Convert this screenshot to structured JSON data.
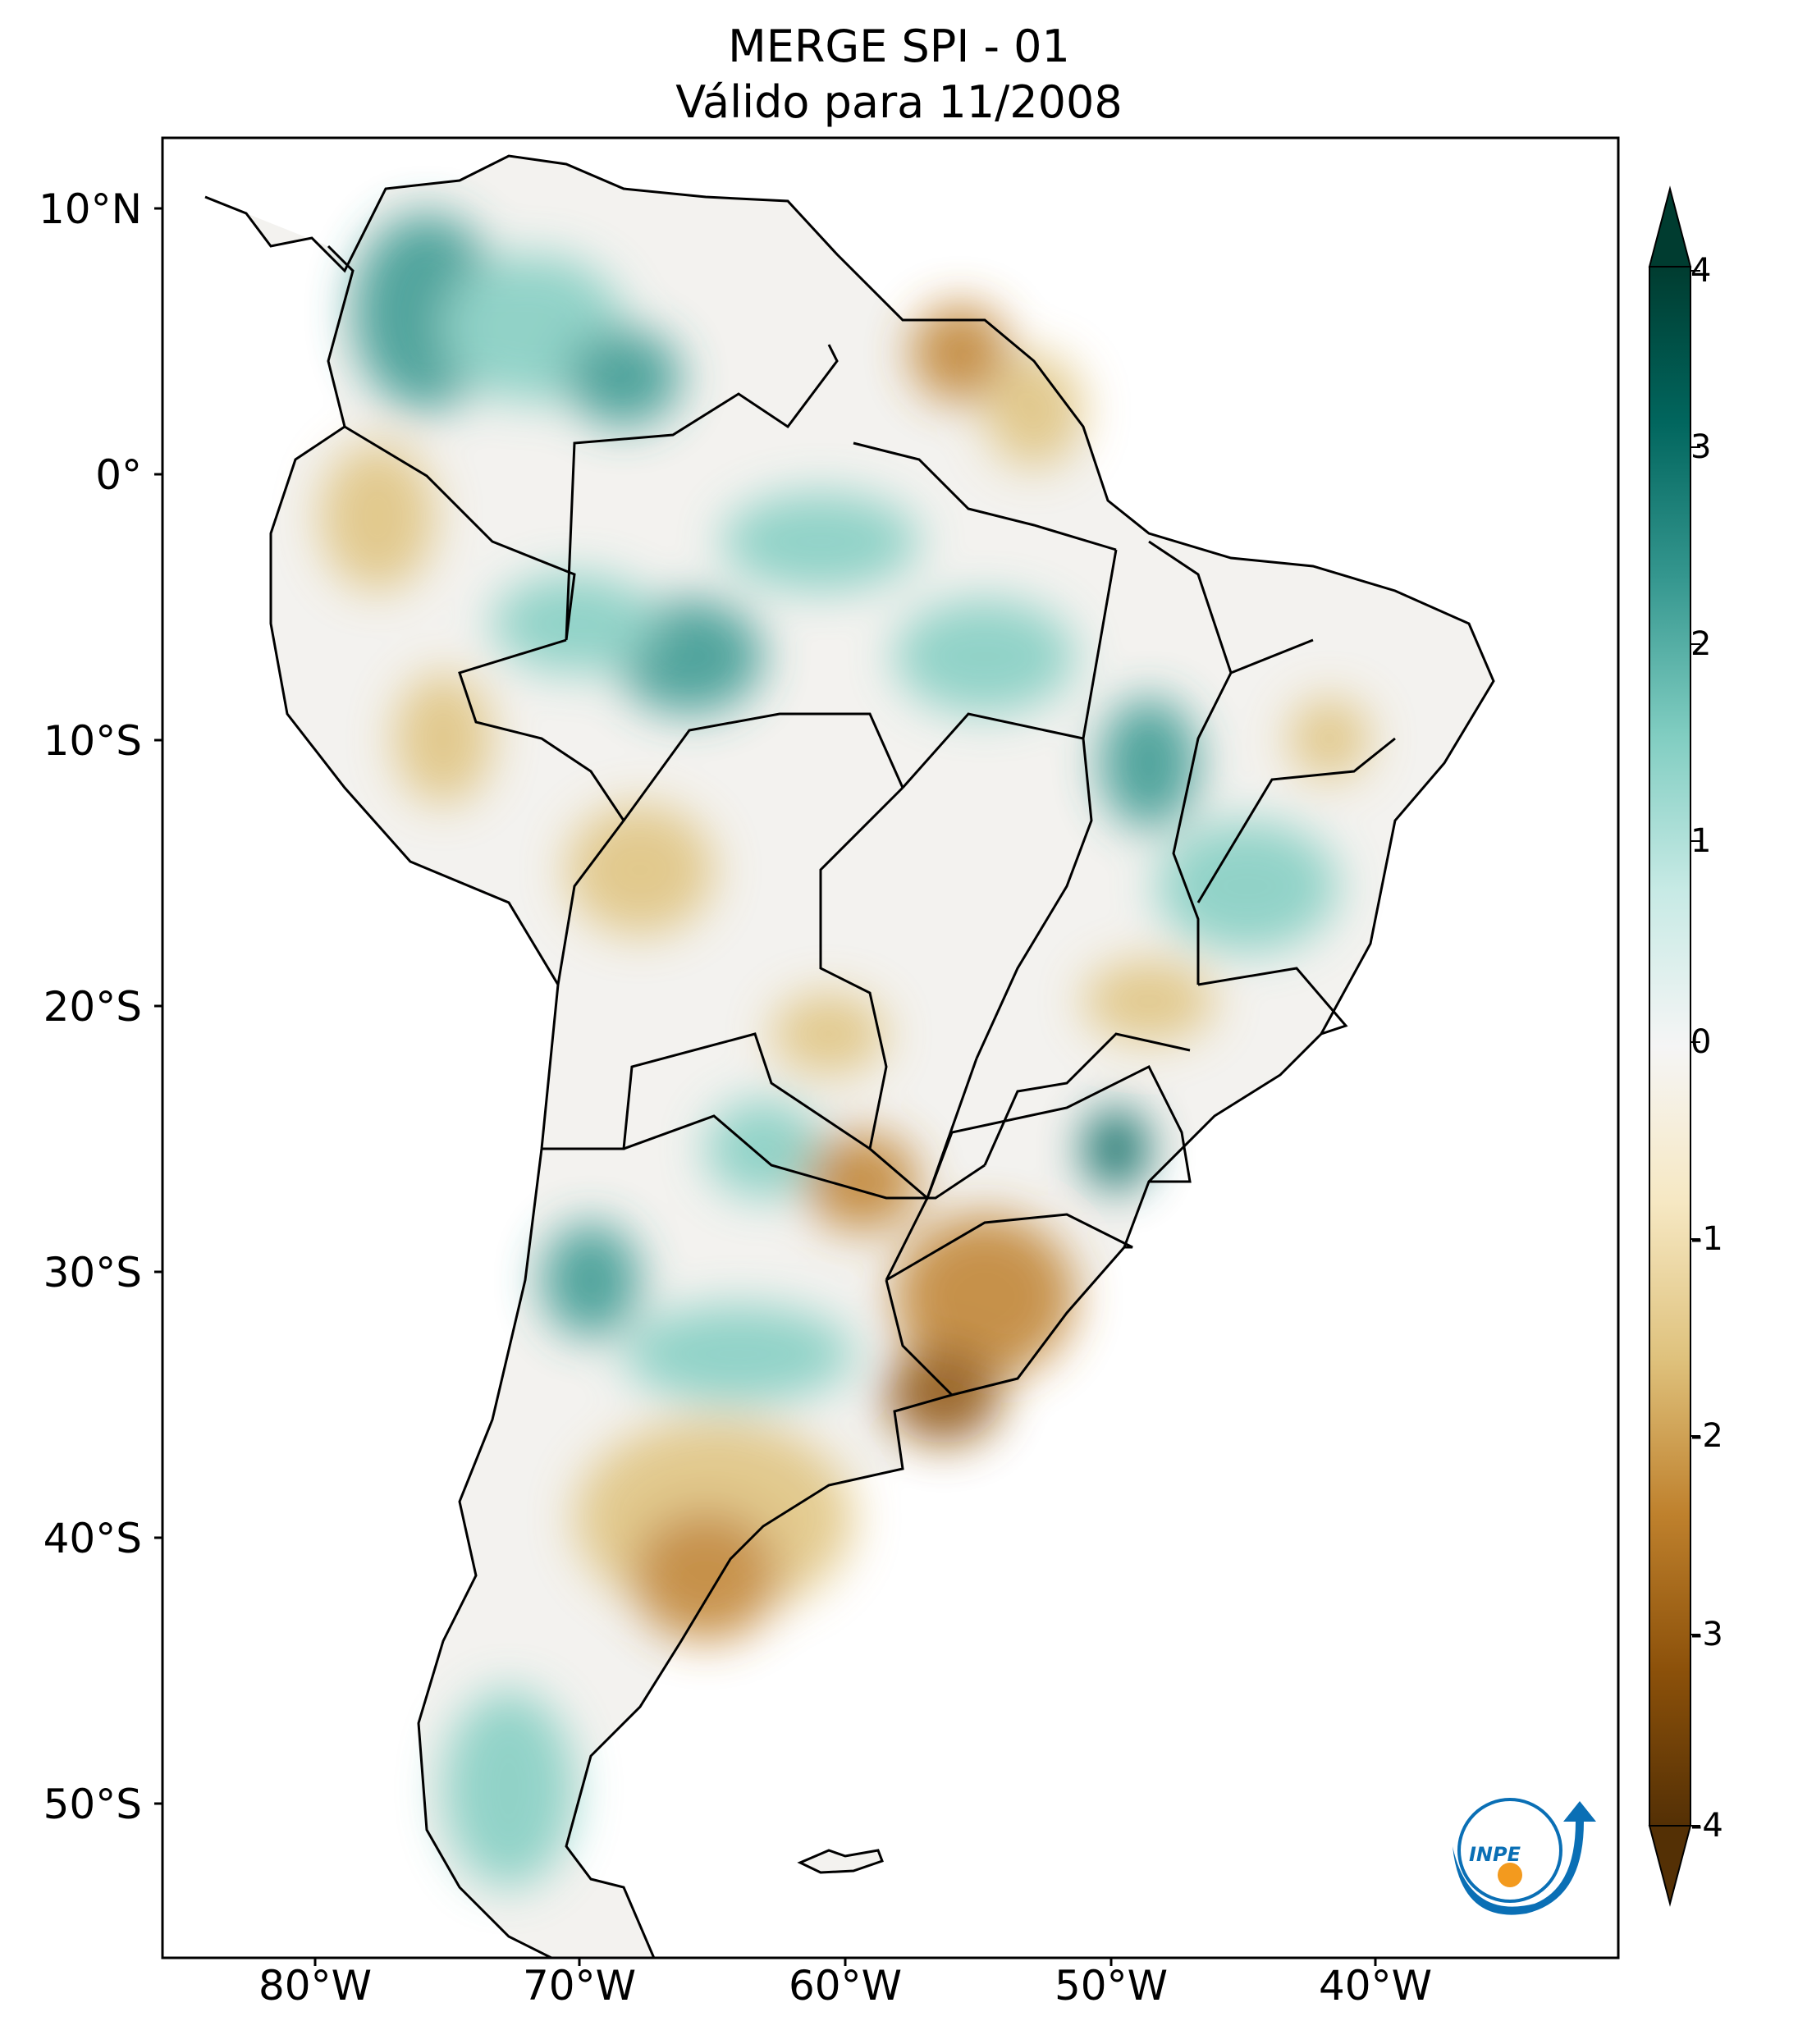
{
  "title": {
    "line1": "MERGE   SPI - 01",
    "line2": "Válido para 11/2008"
  },
  "axes": {
    "lat_labels": [
      "10°N",
      "0°",
      "10°S",
      "20°S",
      "30°S",
      "40°S",
      "50°S"
    ],
    "lon_labels": [
      "80°W",
      "70°W",
      "60°W",
      "50°W",
      "40°W"
    ]
  },
  "colorbar": {
    "ticks": [
      "4",
      "3",
      "2",
      "1",
      "0",
      "-1",
      "-2",
      "-3",
      "-4"
    ],
    "min": -4,
    "max": 4,
    "colormap": "BrBG",
    "colors": [
      "#543005",
      "#8c510a",
      "#bf812d",
      "#dfc27d",
      "#f6e8c3",
      "#f5f5f5",
      "#c7eae5",
      "#80cdc1",
      "#35978f",
      "#01665e",
      "#003c30"
    ]
  },
  "logo": {
    "text": "INPE",
    "color_primary": "#0a6fb5",
    "color_accent": "#f39a1e"
  }
}
